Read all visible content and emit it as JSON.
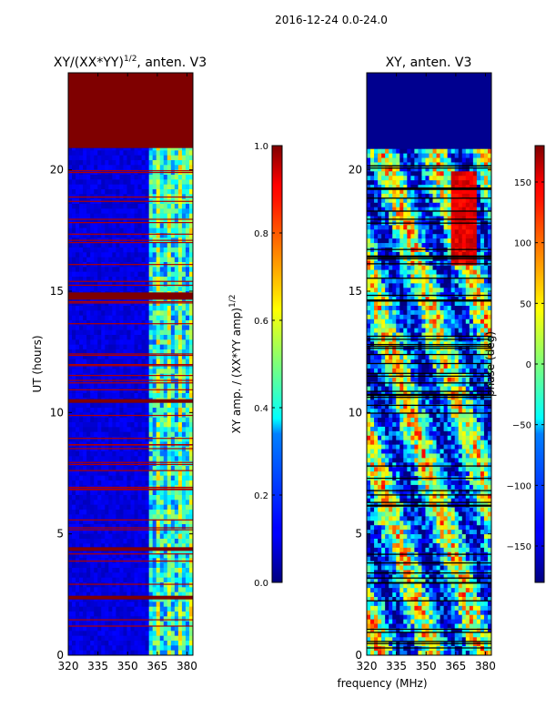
{
  "figure": {
    "suptitle": "2016-12-24 0.0-24.0",
    "shared_xlabel": "frequency (MHz)"
  },
  "chart_data": [
    {
      "type": "heatmap",
      "title": "XY/(XX*YY)",
      "title_sup": "1/2",
      "title_suffix": ", anten. V3",
      "ylabel": "UT (hours)",
      "xlim": [
        320,
        383
      ],
      "ylim": [
        0,
        24
      ],
      "xticks": [
        320,
        335,
        350,
        365,
        380
      ],
      "yticks": [
        0,
        5,
        10,
        15,
        20
      ],
      "colormap": "jet",
      "colorbar": {
        "label": "XY amp. / (XX*YY amp)",
        "label_sup": "1/2",
        "vmin": 0.0,
        "vmax": 1.0,
        "ticks": [
          "0.0",
          "0.2",
          "0.4",
          "0.6",
          "0.8",
          "1.0"
        ]
      },
      "flagged_band_hours": [
        [
          20.9,
          24.0
        ],
        [
          14.65,
          14.95
        ],
        [
          10.4,
          10.55
        ],
        [
          4.3,
          4.45
        ],
        [
          2.3,
          2.45
        ]
      ],
      "bright_channel_range_mhz": [
        361,
        383
      ]
    },
    {
      "type": "heatmap",
      "title": "XY, anten. V3",
      "ylabel": "",
      "xlim": [
        320,
        383
      ],
      "ylim": [
        0,
        24
      ],
      "xticks": [
        320,
        335,
        350,
        365,
        380
      ],
      "yticks": [
        0,
        5,
        10,
        15,
        20
      ],
      "colormap": "jet",
      "colorbar": {
        "label": "phase (deg)",
        "vmin": -180,
        "vmax": 180,
        "ticks": [
          "150",
          "100",
          "50",
          "0",
          "−50",
          "−100",
          "−150"
        ]
      },
      "flagged_band_hours": [
        [
          20.9,
          24.0
        ]
      ]
    }
  ]
}
